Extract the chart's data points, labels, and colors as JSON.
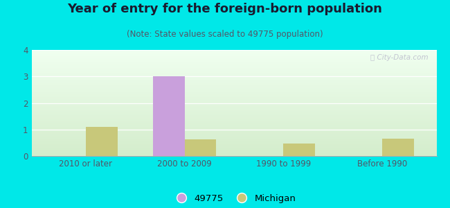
{
  "title": "Year of entry for the foreign-born population",
  "subtitle": "(Note: State values scaled to 49775 population)",
  "categories": [
    "2010 or later",
    "2000 to 2009",
    "1990 to 1999",
    "Before 1990"
  ],
  "series_49775": [
    0,
    3,
    0,
    0
  ],
  "series_michigan": [
    1.1,
    0.62,
    0.48,
    0.65
  ],
  "color_49775": "#c9a0dc",
  "color_michigan": "#c8c87a",
  "background_outer": "#00e8e8",
  "background_inner_top": "#f0fff0",
  "background_inner_bottom": "#d4edcc",
  "ylim": [
    0,
    4
  ],
  "yticks": [
    0,
    1,
    2,
    3,
    4
  ],
  "bar_width": 0.32,
  "title_fontsize": 13,
  "subtitle_fontsize": 8.5,
  "tick_fontsize": 8.5,
  "legend_fontsize": 9.5,
  "title_color": "#1a1a2e",
  "subtitle_color": "#555566",
  "tick_color": "#555566"
}
